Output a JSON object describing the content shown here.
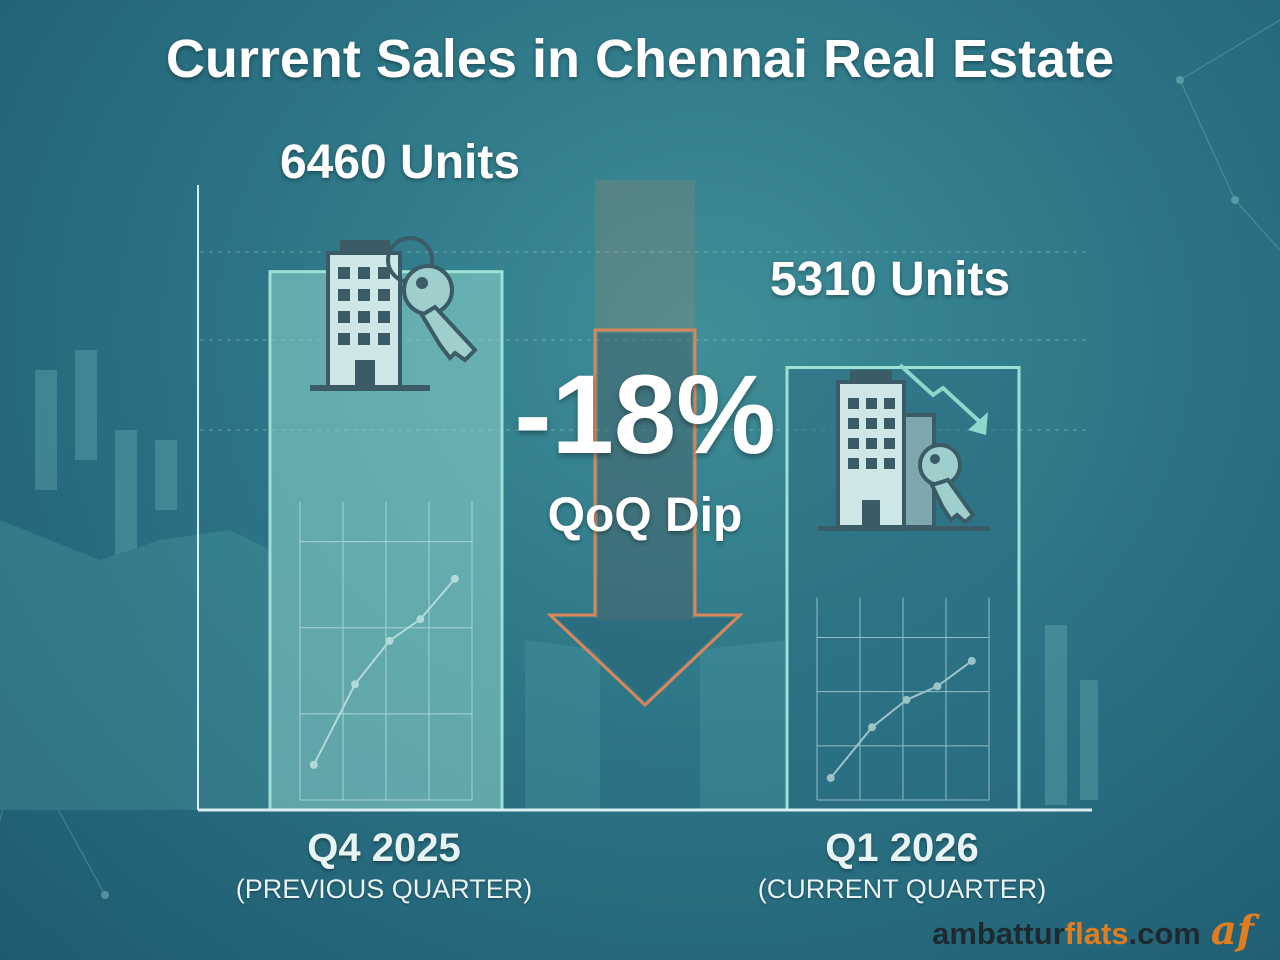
{
  "chart_data": {
    "type": "bar",
    "title": "Current Sales in Chennai Real Estate",
    "categories": [
      "Q4 2025",
      "Q1 2026"
    ],
    "category_sublabels": [
      "(PREVIOUS QUARTER)",
      "(CURRENT QUARTER)"
    ],
    "values": [
      6460,
      5310
    ],
    "data_labels": [
      "6460 Units",
      "5310 Units"
    ],
    "ylim": [
      0,
      7500
    ],
    "annotation": {
      "value": "-18%",
      "label": "QoQ Dip"
    },
    "colors": {
      "bar_previous": "#8fd6cc",
      "bar_current": "#2b6d82",
      "arrow": "#d9865a"
    }
  },
  "brand": {
    "part1": "ambattur",
    "part2": "flats",
    "part3": ".com",
    "logo": "af"
  },
  "icons": [
    "building-key-icon",
    "building-key-down-trend-icon",
    "down-arrow-icon"
  ]
}
